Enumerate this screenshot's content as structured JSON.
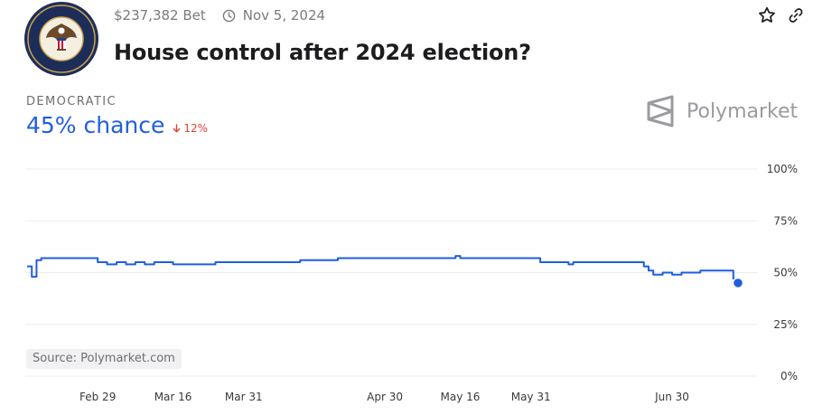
{
  "header": {
    "volume": "$237,382 Bet",
    "date": "Nov 5, 2024",
    "title": "House control after 2024 election?",
    "seal_text": "U.S. HOUSE OF REPRESENTATIVES"
  },
  "icons": {
    "clock": "clock-icon",
    "star": "star-icon",
    "link": "link-icon",
    "arrow": "arrow-down-icon",
    "brand": "polymarket-logo-icon"
  },
  "outcome": {
    "label": "DEMOCRATIC",
    "chance": "45% chance",
    "change": "12%"
  },
  "brand": {
    "name": "Polymarket"
  },
  "source": "Source: Polymarket.com",
  "colors": {
    "line": "#1f5ee0",
    "change_down": "#e0443a",
    "axis_text": "#3a3a3f",
    "grid": "#ececf0"
  },
  "chart_data": {
    "type": "line",
    "x_ticks": [
      "Feb 29",
      "Mar 16",
      "Mar 31",
      "Apr 30",
      "May 16",
      "May 31",
      "Jun 30"
    ],
    "y_ticks": [
      "100%",
      "75%",
      "50%",
      "25%",
      "0%"
    ],
    "ylim": [
      0,
      100
    ],
    "grid": true,
    "series": [
      {
        "points": [
          [
            "Feb 14",
            53
          ],
          [
            "Feb 15",
            48
          ],
          [
            "Feb 16",
            56
          ],
          [
            "Feb 17",
            57
          ],
          [
            "Feb 21",
            57
          ],
          [
            "Feb 25",
            57
          ],
          [
            "Feb 28",
            57
          ],
          [
            "Feb 29",
            55
          ],
          [
            "Mar 2",
            54
          ],
          [
            "Mar 4",
            55
          ],
          [
            "Mar 6",
            54
          ],
          [
            "Mar 8",
            55
          ],
          [
            "Mar 10",
            54
          ],
          [
            "Mar 12",
            55
          ],
          [
            "Mar 14",
            55
          ],
          [
            "Mar 16",
            54
          ],
          [
            "Mar 22",
            54
          ],
          [
            "Mar 24",
            54
          ],
          [
            "Mar 25",
            55
          ],
          [
            "Mar 31",
            55
          ],
          [
            "Apr 10",
            55
          ],
          [
            "Apr 12",
            56
          ],
          [
            "Apr 18",
            56
          ],
          [
            "Apr 20",
            57
          ],
          [
            "Apr 30",
            57
          ],
          [
            "May 14",
            57
          ],
          [
            "May 15",
            58
          ],
          [
            "May 16",
            57
          ],
          [
            "May 31",
            57
          ],
          [
            "Jun 2",
            55
          ],
          [
            "Jun 6",
            55
          ],
          [
            "Jun 8",
            54
          ],
          [
            "Jun 9",
            55
          ],
          [
            "Jun 22",
            55
          ],
          [
            "Jun 24",
            53
          ],
          [
            "Jun 25",
            51
          ],
          [
            "Jun 26",
            49
          ],
          [
            "Jun 28",
            50
          ],
          [
            "Jun 30",
            49
          ],
          [
            "Jul 2",
            50
          ],
          [
            "Jul 4",
            50
          ],
          [
            "Jul 6",
            51
          ],
          [
            "Jul 8",
            51
          ],
          [
            "Jul 12",
            51
          ],
          [
            "Jul 13",
            47
          ],
          [
            "Jul 14",
            45
          ]
        ]
      }
    ]
  }
}
